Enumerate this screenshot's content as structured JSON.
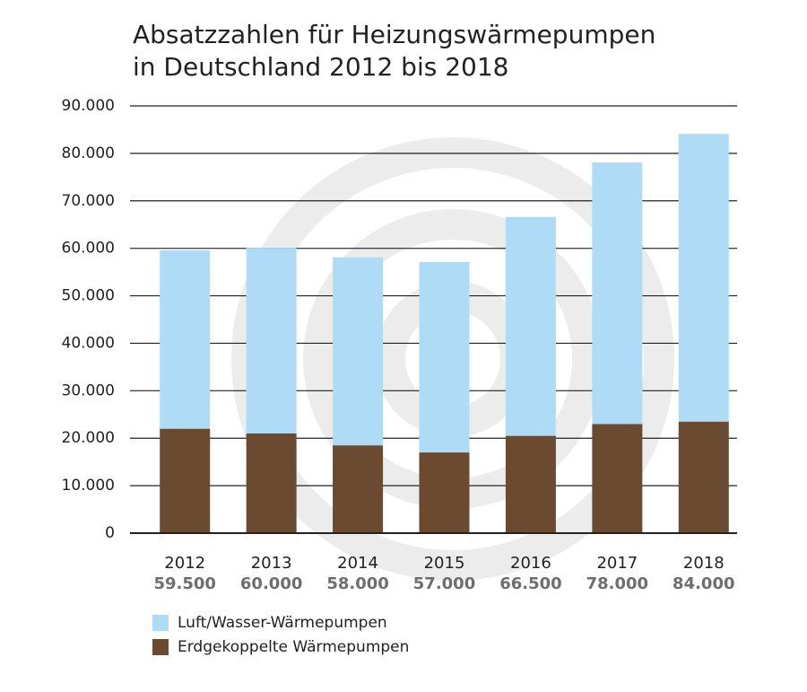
{
  "chart_data": {
    "type": "stacked_bar",
    "title": "Absatzzahlen für Heizungswärmepumpen",
    "subtitle": "in Deutschland 2012 bis 2018",
    "categories": [
      "2012",
      "2013",
      "2014",
      "2015",
      "2016",
      "2017",
      "2018"
    ],
    "series": [
      {
        "name": "Erdgekoppelte Wärmepumpen",
        "color": "#6b4a32",
        "values": [
          22000,
          21000,
          18500,
          17000,
          20500,
          23000,
          23500
        ]
      },
      {
        "name": "Luft/Wasser-Wärmepumpen",
        "color": "#aedcf7",
        "values": [
          37500,
          39000,
          39500,
          40000,
          46000,
          55000,
          60500
        ]
      }
    ],
    "totals": {
      "values": [
        59500,
        60000,
        58000,
        57000,
        66500,
        78000,
        84000
      ],
      "value_labels": [
        "59.500",
        "60.000",
        "58.000",
        "57.000",
        "66.500",
        "78.000",
        "84.000"
      ]
    },
    "ylim": [
      0,
      90000
    ],
    "yticks": [
      0,
      {
        "value": 10000,
        "label": "10.000"
      },
      {
        "value": 20000,
        "label": "20.000"
      },
      {
        "value": 30000,
        "label": "30.000"
      },
      {
        "value": 40000,
        "label": "40.000"
      },
      {
        "value": 50000,
        "label": "50.000"
      },
      {
        "value": 60000,
        "label": "60.000"
      },
      {
        "value": 70000,
        "label": "70.000"
      },
      {
        "value": 80000,
        "label": "80.000"
      },
      {
        "value": 90000,
        "label": "90.000"
      }
    ],
    "grid": true
  }
}
